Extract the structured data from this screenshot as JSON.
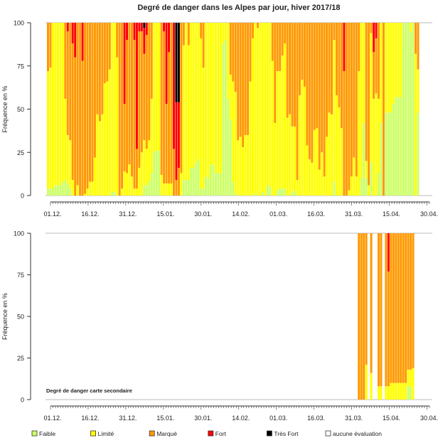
{
  "chart_data": [
    {
      "type": "bar",
      "stacked": true,
      "title": "Degré de danger dans les Alpes par jour, hiver 2017/18",
      "ylabel": "Fréquence en %",
      "xlabel": "",
      "ylim": [
        0,
        100
      ],
      "yticks": [
        "0",
        "25",
        "50",
        "75",
        "100"
      ],
      "x_start": "01.12.",
      "n_days": 151,
      "xtick_labels": [
        "01.12.",
        "16.12.",
        "31.12.",
        "15.01.",
        "30.01.",
        "14.02.",
        "01.03.",
        "16.03.",
        "31.03.",
        "15.04.",
        "30.04."
      ],
      "xtick_step_days": 15,
      "series": [
        {
          "name": "Faible",
          "color": "#ccff66",
          "values": [
            4,
            4,
            4,
            6,
            6,
            6,
            8,
            9,
            7,
            4,
            0,
            0,
            0,
            0,
            0,
            0,
            0,
            0,
            0,
            0,
            0,
            0,
            0,
            0,
            0,
            0,
            2,
            2,
            0,
            0,
            0,
            0,
            0,
            0,
            0,
            0,
            0,
            0,
            0,
            6,
            6,
            8,
            13,
            25,
            26,
            26,
            0,
            0,
            0,
            0,
            0,
            0,
            0,
            0,
            0,
            9,
            9,
            9,
            16,
            16,
            19,
            21,
            4,
            4,
            11,
            10,
            18,
            18,
            13,
            13,
            13,
            88,
            90,
            56,
            44,
            8,
            1,
            0,
            0,
            0,
            0,
            0,
            0,
            0,
            1,
            0,
            0,
            2,
            0,
            6,
            5,
            0,
            0,
            3,
            4,
            4,
            4,
            0,
            0,
            2,
            3,
            0,
            0,
            0,
            0,
            0,
            0,
            0,
            0,
            0,
            0,
            0,
            0,
            0,
            0,
            0,
            8,
            0,
            0,
            0,
            0,
            0,
            0,
            0,
            0,
            0,
            0,
            10,
            42,
            10,
            0,
            19,
            0,
            0,
            13,
            42,
            0,
            48,
            48,
            48,
            53,
            57,
            57,
            57,
            100,
            100,
            100,
            95,
            100,
            0,
            48
          ]
        },
        {
          "name": "Limité",
          "color": "#ffff00",
          "values": [
            68,
            70,
            96,
            94,
            94,
            94,
            92,
            47,
            28,
            28,
            9,
            0,
            6,
            0,
            0,
            1,
            4,
            8,
            8,
            22,
            47,
            43,
            47,
            65,
            66,
            73,
            98,
            98,
            80,
            0,
            4,
            14,
            13,
            18,
            11,
            4,
            4,
            16,
            25,
            26,
            21,
            24,
            43,
            75,
            74,
            74,
            12,
            7,
            7,
            7,
            7,
            0,
            0,
            0,
            13,
            78,
            91,
            78,
            84,
            84,
            81,
            79,
            87,
            70,
            89,
            90,
            82,
            82,
            87,
            87,
            87,
            12,
            10,
            44,
            26,
            58,
            59,
            32,
            34,
            28,
            35,
            35,
            66,
            91,
            99,
            97,
            100,
            98,
            100,
            94,
            95,
            78,
            42,
            69,
            68,
            77,
            84,
            45,
            47,
            38,
            37,
            9,
            58,
            67,
            63,
            29,
            21,
            19,
            38,
            39,
            15,
            25,
            11,
            34,
            48,
            47,
            82,
            58,
            51,
            39,
            0,
            0,
            3,
            11,
            22,
            11,
            72,
            90,
            58,
            10,
            6,
            75,
            56,
            59,
            43,
            58,
            0,
            52,
            52,
            52,
            47,
            43,
            43,
            43,
            0,
            0,
            0,
            5,
            0,
            82,
            25
          ]
        },
        {
          "name": "Marqué",
          "color": "#ff9900",
          "values": [
            28,
            26,
            0,
            0,
            0,
            0,
            0,
            44,
            60,
            68,
            79,
            80,
            94,
            100,
            78,
            99,
            96,
            92,
            92,
            78,
            53,
            57,
            53,
            35,
            34,
            27,
            0,
            0,
            20,
            100,
            96,
            39,
            77,
            82,
            89,
            86,
            23,
            79,
            70,
            50,
            66,
            68,
            44,
            0,
            0,
            0,
            88,
            88,
            46,
            76,
            93,
            27,
            9,
            16,
            87,
            13,
            0,
            13,
            0,
            0,
            0,
            0,
            9,
            26,
            0,
            0,
            0,
            0,
            0,
            0,
            0,
            0,
            0,
            0,
            30,
            34,
            40,
            68,
            66,
            72,
            65,
            65,
            34,
            9,
            0,
            3,
            0,
            0,
            0,
            0,
            0,
            22,
            58,
            28,
            28,
            19,
            12,
            55,
            53,
            60,
            60,
            91,
            42,
            33,
            37,
            71,
            79,
            81,
            62,
            61,
            85,
            75,
            89,
            66,
            52,
            53,
            10,
            42,
            49,
            61,
            72,
            100,
            97,
            89,
            78,
            89,
            28,
            0,
            0,
            80,
            94,
            6,
            27,
            32,
            44,
            0,
            100,
            0,
            0,
            0,
            0,
            0,
            0,
            0,
            0,
            0,
            0,
            0,
            0,
            18,
            27
          ]
        },
        {
          "name": "Fort",
          "color": "#ff0000",
          "values": [
            0,
            0,
            0,
            0,
            0,
            0,
            0,
            0,
            5,
            0,
            12,
            20,
            0,
            0,
            22,
            0,
            0,
            0,
            0,
            0,
            0,
            0,
            0,
            0,
            0,
            0,
            0,
            0,
            0,
            0,
            0,
            47,
            10,
            0,
            0,
            10,
            73,
            5,
            5,
            15,
            7,
            0,
            0,
            0,
            0,
            0,
            0,
            5,
            47,
            17,
            0,
            73,
            45,
            38,
            0,
            0,
            0,
            0,
            0,
            0,
            0,
            0,
            0,
            0,
            0,
            0,
            0,
            0,
            0,
            0,
            0,
            0,
            0,
            0,
            0,
            0,
            0,
            0,
            0,
            0,
            0,
            0,
            0,
            0,
            0,
            0,
            0,
            0,
            0,
            0,
            0,
            0,
            0,
            0,
            0,
            0,
            0,
            0,
            0,
            0,
            0,
            0,
            0,
            0,
            0,
            0,
            0,
            0,
            0,
            0,
            0,
            0,
            0,
            0,
            0,
            0,
            0,
            0,
            0,
            0,
            28,
            0,
            0,
            0,
            0,
            0,
            0,
            0,
            0,
            0,
            0,
            0,
            17,
            9,
            0,
            0,
            0,
            0,
            0,
            0,
            0,
            0,
            0,
            0,
            0,
            0,
            0,
            0,
            0,
            0,
            0
          ]
        },
        {
          "name": "Très Fort",
          "color": "#000000",
          "values": [
            0,
            0,
            0,
            0,
            0,
            0,
            0,
            0,
            0,
            0,
            0,
            0,
            0,
            0,
            0,
            0,
            0,
            0,
            0,
            0,
            0,
            0,
            0,
            0,
            0,
            0,
            0,
            0,
            0,
            0,
            0,
            0,
            0,
            0,
            0,
            0,
            0,
            0,
            0,
            3,
            0,
            0,
            0,
            0,
            0,
            0,
            0,
            0,
            0,
            0,
            0,
            0,
            46,
            46,
            0,
            0,
            0,
            0,
            0,
            0,
            0,
            0,
            0,
            0,
            0,
            0,
            0,
            0,
            0,
            0,
            0,
            0,
            0,
            0,
            0,
            0,
            0,
            0,
            0,
            0,
            0,
            0,
            0,
            0,
            0,
            0,
            0,
            0,
            0,
            0,
            0,
            0,
            0,
            0,
            0,
            0,
            0,
            0,
            0,
            0,
            0,
            0,
            0,
            0,
            0,
            0,
            0,
            0,
            0,
            0,
            0,
            0,
            0,
            0,
            0,
            0,
            0,
            0,
            0,
            0,
            0,
            0,
            0,
            0,
            0,
            0,
            0,
            0,
            0,
            0,
            0,
            0,
            0,
            0,
            0,
            0,
            0,
            0,
            0,
            0,
            0,
            0,
            0,
            0,
            0,
            0,
            0,
            0,
            0,
            0,
            0
          ]
        }
      ]
    },
    {
      "type": "bar",
      "stacked": true,
      "title": "",
      "annotation": "Degré de danger carte secondaire",
      "ylabel": "Fréquence en %",
      "ylim": [
        0,
        100
      ],
      "yticks": [
        "0",
        "25",
        "50",
        "75",
        "100"
      ],
      "x_start": "01.12.",
      "n_days": 151,
      "xtick_labels": [
        "01.12.",
        "16.12.",
        "31.12.",
        "15.01.",
        "30.01.",
        "14.02.",
        "01.03.",
        "16.03.",
        "31.03.",
        "15.04.",
        "30.04."
      ],
      "xtick_step_days": 15,
      "first_day_index": 126,
      "series": [
        {
          "name": "Faible",
          "color": "#ccff66",
          "values": [
            0,
            0,
            0,
            0,
            null,
            0,
            null,
            null,
            0,
            0,
            null,
            0,
            0,
            0,
            0,
            0,
            0,
            0,
            0,
            0,
            8,
            8,
            0
          ]
        },
        {
          "name": "Limité",
          "color": "#ffff00",
          "values": [
            0,
            0,
            0,
            21,
            null,
            16,
            null,
            null,
            8,
            8,
            null,
            8,
            8,
            10,
            10,
            10,
            10,
            10,
            10,
            10,
            10,
            10,
            19
          ]
        },
        {
          "name": "Marqué",
          "color": "#ff9900",
          "values": [
            100,
            100,
            100,
            79,
            null,
            84,
            null,
            null,
            92,
            92,
            null,
            92,
            69,
            90,
            90,
            90,
            90,
            90,
            90,
            90,
            82,
            82,
            81
          ]
        },
        {
          "name": "Fort",
          "color": "#ff0000",
          "values": [
            0,
            0,
            0,
            0,
            null,
            0,
            null,
            null,
            0,
            0,
            null,
            0,
            23,
            0,
            0,
            0,
            0,
            0,
            0,
            0,
            0,
            0,
            0
          ]
        },
        {
          "name": "Très Fort",
          "color": "#000000",
          "values": [
            0,
            0,
            0,
            0,
            null,
            0,
            null,
            null,
            0,
            0,
            null,
            0,
            0,
            0,
            0,
            0,
            0,
            0,
            0,
            0,
            0,
            0,
            0
          ]
        }
      ]
    }
  ],
  "legend": [
    {
      "label": "Faible",
      "color": "#ccff66"
    },
    {
      "label": "Limité",
      "color": "#ffff00"
    },
    {
      "label": "Marqué",
      "color": "#ff9900"
    },
    {
      "label": "Fort",
      "color": "#ff0000"
    },
    {
      "label": "Très Fort",
      "color": "#000000"
    },
    {
      "label": "aucune évaluation",
      "color": "#ffffff"
    }
  ]
}
